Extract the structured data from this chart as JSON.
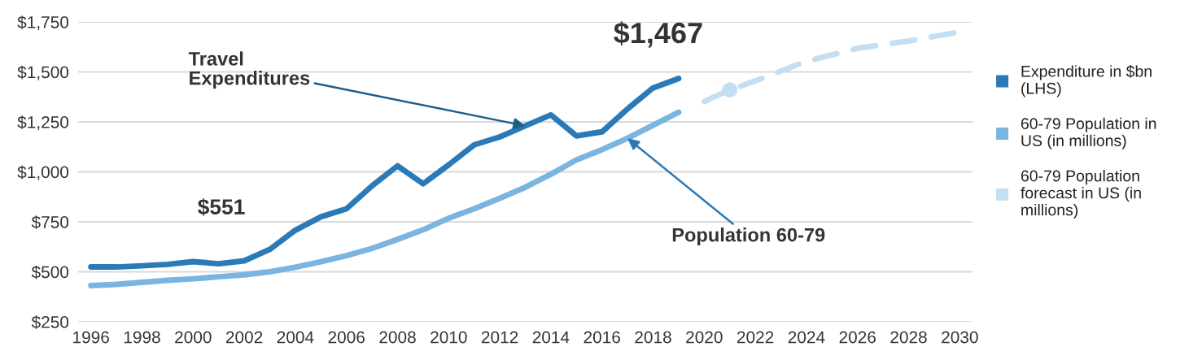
{
  "chart_data": {
    "type": "line",
    "x": [
      1996,
      1997,
      1998,
      1999,
      2000,
      2001,
      2002,
      2003,
      2004,
      2005,
      2006,
      2007,
      2008,
      2009,
      2010,
      2011,
      2012,
      2013,
      2014,
      2015,
      2016,
      2017,
      2018,
      2019
    ],
    "series": [
      {
        "name": "Expenditure in $bn (LHS)",
        "color": "#2a7ab8",
        "values": [
          524,
          524,
          530,
          537,
          551,
          540,
          555,
          612,
          708,
          775,
          815,
          930,
          1030,
          940,
          1035,
          1135,
          1175,
          1230,
          1285,
          1180,
          1200,
          1315,
          1420,
          1467
        ]
      },
      {
        "name": "60-79 Population in US (in millions)",
        "color": "#7ab4e0",
        "values": [
          431,
          437,
          447,
          457,
          465,
          475,
          485,
          500,
          523,
          550,
          581,
          617,
          662,
          710,
          768,
          815,
          868,
          923,
          988,
          1060,
          1111,
          1168,
          1233,
          1298
        ]
      },
      {
        "name": "60-79 Population forecast in US (in millions)",
        "color": "#c5dff2",
        "line_style": "dashed",
        "x": [
          2020,
          2021,
          2022,
          2024,
          2026,
          2028,
          2030
        ],
        "values": [
          1352,
          1410,
          1455,
          1553,
          1618,
          1655,
          1700
        ]
      },
      {
        "type": "scatter",
        "color": "#c5dff2",
        "marker": "circle",
        "x": [
          2021
        ],
        "values": [
          1410
        ]
      }
    ],
    "xlim": [
      1995.5,
      2030.5
    ],
    "xticks": [
      1996,
      1998,
      2000,
      2002,
      2004,
      2006,
      2008,
      2010,
      2012,
      2014,
      2016,
      2018,
      2020,
      2022,
      2024,
      2026,
      2028,
      2030
    ],
    "ylim": [
      250,
      1750
    ],
    "yticks": [
      {
        "value": 250,
        "label": "$250"
      },
      {
        "value": 500,
        "label": "$500"
      },
      {
        "value": 750,
        "label": "$750"
      },
      {
        "value": 1000,
        "label": "$1,000"
      },
      {
        "value": 1250,
        "label": "$1,250"
      },
      {
        "value": 1500,
        "label": "$1,500"
      },
      {
        "value": 1750,
        "label": "$1,750"
      }
    ],
    "grid": "y",
    "legend": "right",
    "line_style": "solid",
    "marker": "none",
    "annotations": [
      {
        "text": "$551",
        "x": 2000,
        "y": 551
      },
      {
        "text": "$1,467",
        "x": 2019,
        "y": 1467
      },
      {
        "text": "Travel\nExpenditures",
        "x": 2013,
        "y": 1230
      },
      {
        "text": "Population 60-79",
        "x": 2017,
        "y": 1168
      }
    ]
  }
}
